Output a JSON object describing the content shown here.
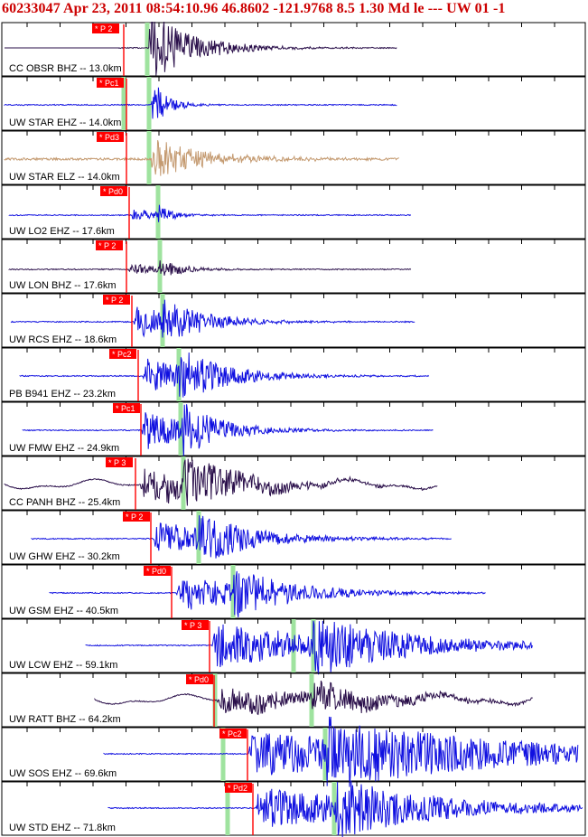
{
  "header": "60233047 Apr 23, 2011 08:54:10.96   46.8602 -121.9768  8.5 1.30 Md le --- UW 01  -1",
  "colors": {
    "blue": "#1010e0",
    "purple": "#2a0f4a",
    "tan": "#c49a70",
    "pick_red": "#ff0000",
    "s_green": "#9fe39f"
  },
  "traces": [
    {
      "label": "CC OBSR BHZ -- 13.0km",
      "pick": "P 2",
      "color": "purple"
    },
    {
      "label": "UW STAR EHZ -- 14.0km",
      "pick": "Pc1",
      "color": "blue"
    },
    {
      "label": "UW STAR ELZ -- 14.0km",
      "pick": "Pd3",
      "color": "tan"
    },
    {
      "label": "UW LO2 EHZ -- 17.6km",
      "pick": "Pd0",
      "color": "blue"
    },
    {
      "label": "UW LON BHZ -- 17.6km",
      "pick": "P 2",
      "color": "purple"
    },
    {
      "label": "UW RCS EHZ -- 18.6km",
      "pick": "P 2",
      "color": "blue"
    },
    {
      "label": "PB B941 EHZ -- 23.2km",
      "pick": "Pc2",
      "color": "blue"
    },
    {
      "label": "UW FMW EHZ -- 24.9km",
      "pick": "Pc1",
      "color": "blue"
    },
    {
      "label": "CC PANH BHZ -- 25.4km",
      "pick": "P 3",
      "color": "purple"
    },
    {
      "label": "UW GHW EHZ -- 30.2km",
      "pick": "P 2",
      "color": "blue"
    },
    {
      "label": "UW GSM EHZ -- 40.5km",
      "pick": "Pd0",
      "color": "blue"
    },
    {
      "label": "UW LCW EHZ -- 59.1km",
      "pick": "P 3",
      "color": "blue"
    },
    {
      "label": "UW RATT BHZ -- 64.2km",
      "pick": "Pd0",
      "color": "purple"
    },
    {
      "label": "UW SOS EHZ -- 69.6km",
      "pick": "Pc2",
      "color": "blue"
    },
    {
      "label": "UW STD EHZ -- 71.8km",
      "pick": "Pd2",
      "color": "blue"
    }
  ]
}
